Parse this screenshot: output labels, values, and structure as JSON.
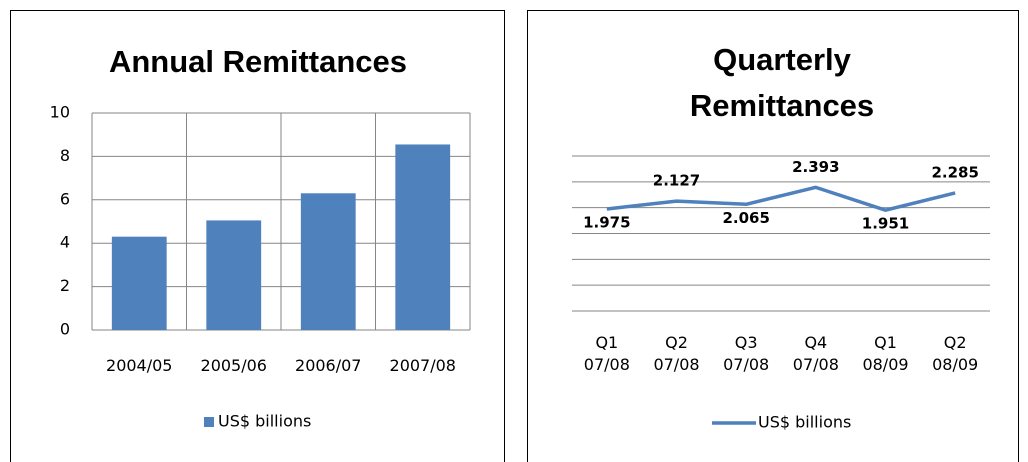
{
  "chart_data": [
    {
      "type": "bar",
      "title": "Annual Remittances",
      "categories": [
        "2004/05",
        "2005/06",
        "2006/07",
        "2007/08"
      ],
      "series": [
        {
          "name": "US$ billions",
          "color": "#4f81bd",
          "values": [
            4.3,
            5.05,
            6.3,
            8.55
          ]
        }
      ],
      "ylim": [
        0,
        10
      ],
      "yticks": [
        0,
        2,
        4,
        6,
        8,
        10
      ],
      "grid": true,
      "legend": "bottom"
    },
    {
      "type": "line",
      "title": "Quarterly Remittances",
      "categories": [
        "Q1 07/08",
        "Q2 07/08",
        "Q3 07/08",
        "Q4 07/08",
        "Q1 08/09",
        "Q2 08/09"
      ],
      "series": [
        {
          "name": "US$ billions",
          "color": "#4f81bd",
          "values": [
            1.975,
            2.127,
            2.065,
            2.393,
            1.951,
            2.285
          ]
        }
      ],
      "ylim": [
        0,
        3
      ],
      "yticks": [
        0,
        0.5,
        1,
        1.5,
        2,
        2.5,
        3
      ],
      "ytick_labels": false,
      "grid": true,
      "legend": "bottom",
      "data_labels": true
    }
  ]
}
